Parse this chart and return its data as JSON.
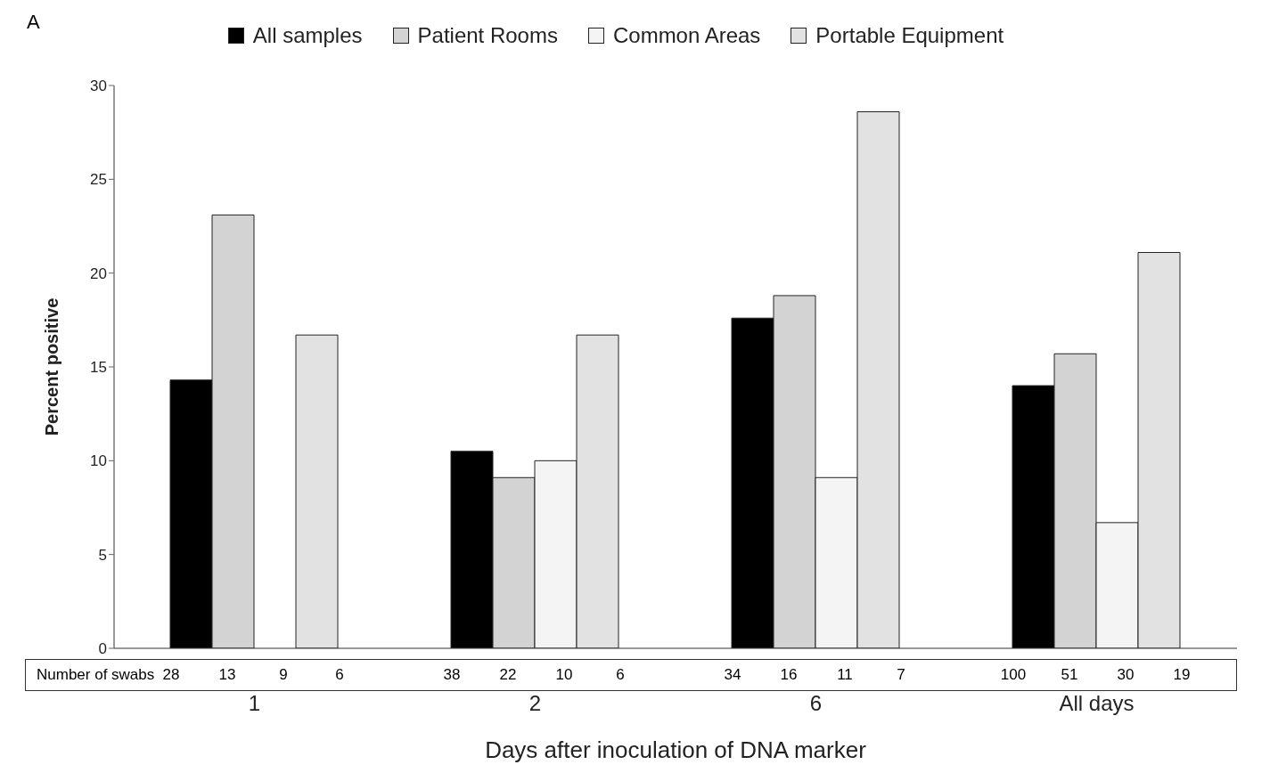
{
  "chart_data": {
    "type": "bar",
    "xlabel": "Days after inoculation of DNA marker",
    "ylabel": "Percent positive",
    "categories": [
      "1",
      "2",
      "6",
      "All days"
    ],
    "series": [
      {
        "name": "All samples",
        "color": "#000000",
        "values": [
          14.3,
          10.5,
          17.6,
          14.0
        ]
      },
      {
        "name": "Patient Rooms",
        "color": "#d3d3d3",
        "values": [
          23.1,
          9.1,
          18.8,
          15.7
        ]
      },
      {
        "name": "Common Areas",
        "color": "#f4f4f4",
        "values": [
          0,
          10.0,
          9.1,
          6.7
        ]
      },
      {
        "name": "Portable Equipment",
        "color": "#e2e2e2",
        "values": [
          16.7,
          16.7,
          28.6,
          21.1
        ]
      }
    ],
    "ylim": [
      0,
      30
    ],
    "yticks": [
      0,
      5,
      10,
      15,
      20,
      25,
      30
    ],
    "grid": false,
    "legend": "top",
    "annotations": [
      "A",
      "Number of swabs",
      "28",
      "13",
      "9",
      "6",
      "38",
      "22",
      "10",
      "6",
      "34",
      "16",
      "11",
      "7",
      "100",
      "51",
      "30",
      "19"
    ]
  }
}
